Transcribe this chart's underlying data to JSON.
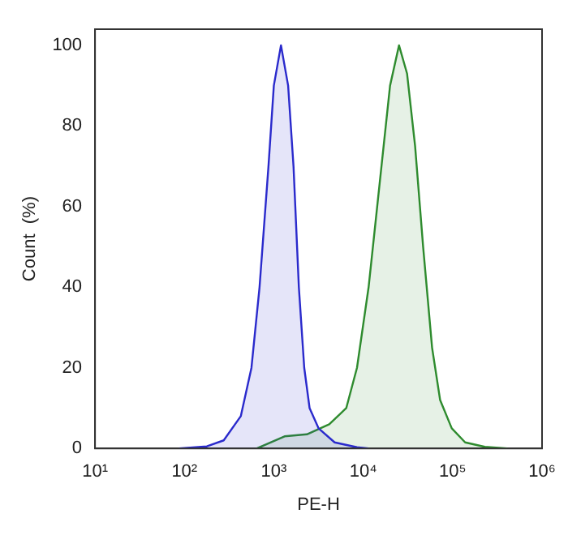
{
  "chart_data": {
    "type": "area",
    "xlabel": "PE-H",
    "ylabel": "Count  (%)",
    "log": "x",
    "grid": false,
    "legend": false,
    "xlim": [
      10,
      1000000
    ],
    "xticks": [
      {
        "value": 10,
        "label": "10¹"
      },
      {
        "value": 100,
        "label": "10²"
      },
      {
        "value": 1000,
        "label": "10³"
      },
      {
        "value": 10000,
        "label": "10⁴"
      },
      {
        "value": 100000,
        "label": "10⁵"
      },
      {
        "value": 1000000,
        "label": "10⁶"
      }
    ],
    "ylim": [
      0,
      104
    ],
    "yticks": [
      0,
      20,
      40,
      60,
      80,
      100
    ],
    "series": [
      {
        "color": "#2a2acc",
        "x": [
          87,
          178,
          275,
          427,
          562,
          692,
          871,
          1000,
          1202,
          1445,
          1660,
          1905,
          2188,
          2512,
          3162,
          4786,
          8511,
          11482
        ],
        "values": [
          0,
          0.5,
          2,
          8,
          20,
          40,
          70,
          90,
          100,
          90,
          70,
          40,
          20,
          10,
          5,
          1.5,
          0.3,
          0
        ]
      },
      {
        "color": "#2e8b2e",
        "x": [
          646,
          1318,
          2344,
          4169,
          6457,
          8511,
          11482,
          15136,
          19953,
          25119,
          30903,
          38019,
          46774,
          58884,
          72444,
          97724,
          138038,
          229087,
          407380
        ],
        "values": [
          0,
          3,
          3.5,
          6,
          10,
          20,
          40,
          65,
          90,
          100,
          93,
          75,
          50,
          25,
          12,
          5,
          1.5,
          0.4,
          0
        ]
      }
    ]
  }
}
